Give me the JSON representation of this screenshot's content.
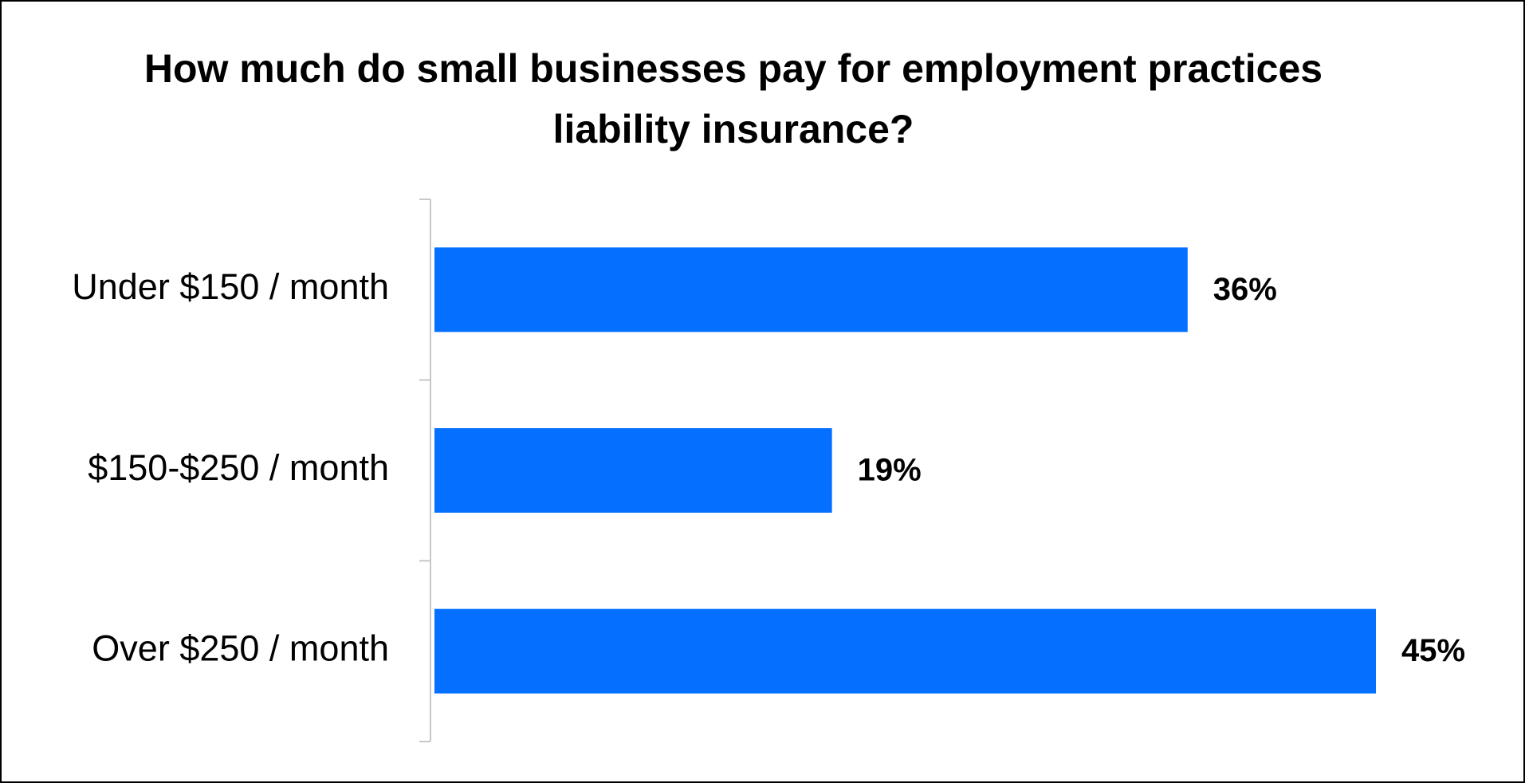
{
  "chart_data": {
    "type": "bar",
    "orientation": "horizontal",
    "title": "How much do small businesses pay for employment practices liability insurance?",
    "categories": [
      "Under $150 / month",
      "$150-$250 / month",
      "Over $250 / month"
    ],
    "values": [
      36,
      19,
      45
    ],
    "value_labels": [
      "36%",
      "19%",
      "45%"
    ],
    "color": "#0570ff"
  }
}
